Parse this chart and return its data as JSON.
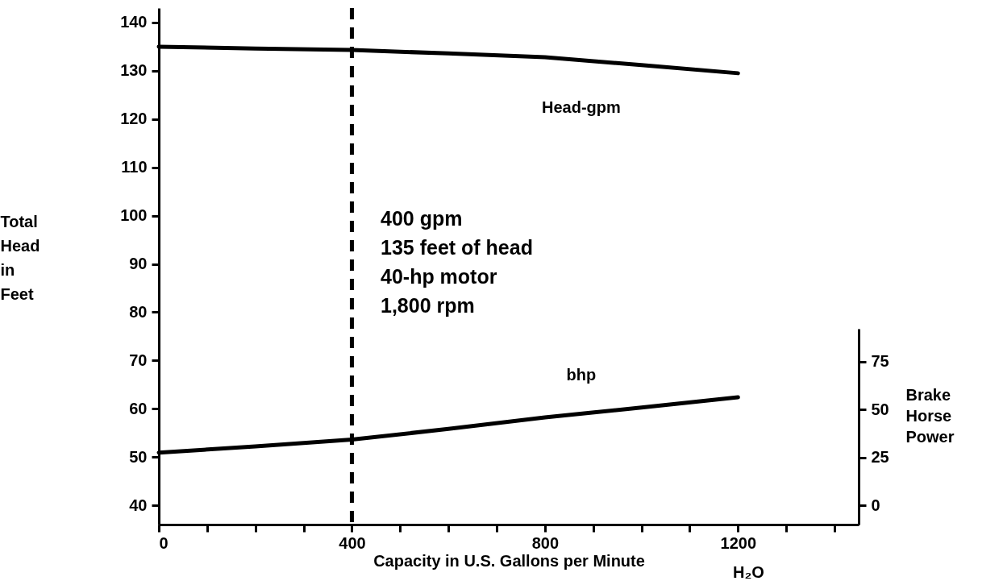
{
  "chart_data": {
    "type": "line",
    "xlabel": "Capacity in U.S. Gallons per Minute",
    "ylabel": "Total Head in Feet",
    "y2label": "Brake Horse Power",
    "x": [
      0,
      200,
      400,
      600,
      800,
      1000,
      1200
    ],
    "series": [
      {
        "name": "Head-gpm",
        "color": "#000000",
        "values": [
          135,
          134.6,
          134.3,
          133.6,
          132.8,
          131.2,
          129.5
        ]
      },
      {
        "name": "bhp",
        "color": "#000000",
        "axis": "y2",
        "values": [
          27.5,
          30.7,
          34.3,
          39.8,
          45.8,
          51,
          56.3
        ]
      }
    ],
    "xlim": [
      0,
      1450
    ],
    "xticks": [
      0,
      {
        "value": 100,
        "label": null
      },
      {
        "value": 200,
        "label": null
      },
      {
        "value": 300,
        "label": null
      },
      400,
      {
        "value": 500,
        "label": null
      },
      {
        "value": 600,
        "label": null
      },
      {
        "value": 700,
        "label": null
      },
      800,
      {
        "value": 900,
        "label": null
      },
      {
        "value": 1000,
        "label": null
      },
      {
        "value": 1100,
        "label": null
      },
      1200,
      {
        "value": 1300,
        "label": null
      },
      {
        "value": 1400,
        "label": null
      }
    ],
    "ylim": [
      36,
      143
    ],
    "yticks": [
      40,
      50,
      60,
      70,
      80,
      90,
      100,
      110,
      120,
      130,
      140
    ],
    "y2lim": [
      -10,
      92
    ],
    "y2ticks": [
      0,
      25,
      50,
      75
    ],
    "ref_lines": [
      {
        "axis": "x",
        "value": 400,
        "color": "#000000",
        "line_style": "dashed"
      }
    ],
    "annotations": [
      "400 gpm",
      "135 feet of head",
      "40-hp motor",
      "1,800 rpm",
      "H₂O"
    ],
    "grid": false,
    "marker": "none",
    "line_style": "solid"
  }
}
